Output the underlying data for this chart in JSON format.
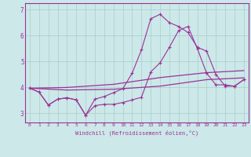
{
  "xlabel": "Windchill (Refroidissement éolien,°C)",
  "bg_color": "#cce8e8",
  "grid_color": "#aacccc",
  "line_color": "#993399",
  "xlim_min": -0.5,
  "xlim_max": 23.5,
  "ylim_min": 2.65,
  "ylim_max": 7.25,
  "yticks": [
    3,
    4,
    5,
    6,
    7
  ],
  "xticks": [
    0,
    1,
    2,
    3,
    4,
    5,
    6,
    7,
    8,
    9,
    10,
    11,
    12,
    13,
    14,
    15,
    16,
    17,
    18,
    19,
    20,
    21,
    22,
    23
  ],
  "curve1_x": [
    0,
    1,
    2,
    3,
    4,
    5,
    6,
    7,
    8,
    9,
    10,
    11,
    12,
    13,
    14,
    15,
    16,
    17,
    18,
    19,
    20,
    21,
    22,
    23
  ],
  "curve1_y": [
    3.97,
    3.82,
    3.32,
    3.55,
    3.6,
    3.52,
    2.93,
    3.3,
    3.35,
    3.35,
    3.42,
    3.52,
    3.62,
    4.6,
    4.95,
    5.55,
    6.2,
    6.35,
    5.5,
    4.55,
    4.1,
    4.1,
    4.05,
    4.3
  ],
  "curve2_x": [
    0,
    1,
    2,
    3,
    4,
    5,
    6,
    7,
    8,
    9,
    10,
    11,
    12,
    13,
    14,
    15,
    16,
    17,
    18,
    19,
    20,
    21,
    22,
    23
  ],
  "curve2_y": [
    3.97,
    3.82,
    3.32,
    3.55,
    3.6,
    3.52,
    2.93,
    3.55,
    3.65,
    3.8,
    3.95,
    4.55,
    5.45,
    6.65,
    6.82,
    6.5,
    6.35,
    6.12,
    5.55,
    5.4,
    4.5,
    4.05,
    4.05,
    4.3
  ],
  "curve3_x": [
    0,
    4,
    9,
    14,
    19,
    23
  ],
  "curve3_y": [
    3.97,
    4.0,
    4.12,
    4.38,
    4.57,
    4.65
  ],
  "curve4_x": [
    0,
    4,
    9,
    14,
    19,
    23
  ],
  "curve4_y": [
    3.97,
    3.9,
    3.93,
    4.05,
    4.3,
    4.37
  ]
}
